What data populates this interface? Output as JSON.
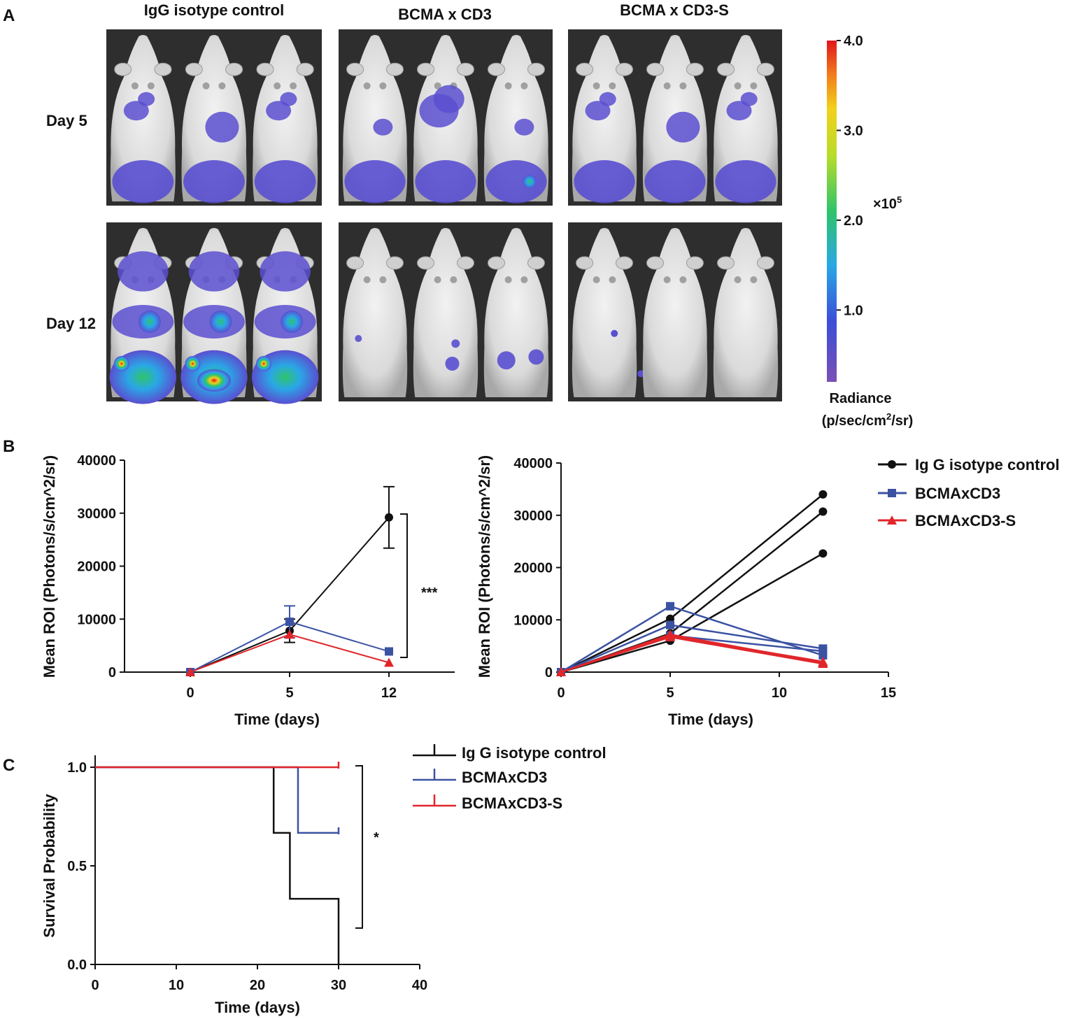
{
  "panel_a": {
    "letter": "A",
    "columns": [
      "IgG isotype control",
      "BCMA x CD3",
      "BCMA x CD3-S"
    ],
    "rows": [
      "Day 5",
      "Day 12"
    ],
    "colorbar": {
      "ticks": [
        "4.0",
        "3.0",
        "2.0",
        "1.0"
      ],
      "tick_values": [
        4.0,
        3.0,
        2.0,
        1.0
      ],
      "range": [
        0.2,
        4.0
      ],
      "multiplier_base": "×10",
      "multiplier_exp": "5",
      "label_line1": "Radiance",
      "label_line2_pre": "(p/sec/cm",
      "label_line2_sup": "2",
      "label_line2_post": "/sr)"
    }
  },
  "panel_b": {
    "letter": "B"
  },
  "panel_c": {
    "letter": "C"
  },
  "chart_data": [
    {
      "id": "b-left",
      "type": "line",
      "xlabel": "Time (days)",
      "ylabel": "Mean ROI (Photons/s/cm^2/sr)",
      "x_categories": [
        "0",
        "5",
        "12"
      ],
      "y_ticks": [
        "0",
        "10000",
        "20000",
        "30000",
        "40000"
      ],
      "ylim": [
        0,
        40000
      ],
      "series": [
        {
          "name": "Ig G isotype control",
          "color": "#111111",
          "marker": "circle",
          "values": [
            0,
            7800,
            29200
          ],
          "err": [
            0,
            2200,
            5800
          ]
        },
        {
          "name": "BCMAxCD3",
          "color": "#3b52a3",
          "marker": "square",
          "values": [
            0,
            9500,
            3900
          ],
          "err": [
            0,
            3000,
            0
          ]
        },
        {
          "name": "BCMAxCD3-S",
          "color": "#e0262b",
          "marker": "triangle",
          "values": [
            0,
            7100,
            1800
          ],
          "err": [
            0,
            0,
            0
          ]
        }
      ],
      "annotation": "***"
    },
    {
      "id": "b-right",
      "type": "line",
      "xlabel": "Time (days)",
      "ylabel": "Mean ROI (Photons/s/cm^2/sr)",
      "x_ticks": [
        "0",
        "5",
        "10",
        "15"
      ],
      "xlim": [
        0,
        15
      ],
      "y_ticks": [
        "0",
        "10000",
        "20000",
        "30000",
        "40000"
      ],
      "ylim": [
        0,
        40000
      ],
      "legend": [
        "Ig G isotype control",
        "BCMAxCD3",
        "BCMAxCD3-S"
      ],
      "series": [
        {
          "name": "Ig G isotype control",
          "color": "#111111",
          "marker": "circle",
          "x": [
            0,
            5,
            12
          ],
          "lines": [
            [
              0,
              10200,
              34000
            ],
            [
              0,
              7400,
              30700
            ],
            [
              0,
              6000,
              22700
            ]
          ]
        },
        {
          "name": "BCMAxCD3",
          "color": "#3b52a3",
          "marker": "square",
          "x": [
            0,
            5,
            12
          ],
          "lines": [
            [
              0,
              12600,
              3200
            ],
            [
              0,
              9000,
              4500
            ],
            [
              0,
              7000,
              4000
            ]
          ]
        },
        {
          "name": "BCMAxCD3-S",
          "color": "#e0262b",
          "marker": "triangle",
          "x": [
            0,
            5,
            12
          ],
          "lines": [
            [
              0,
              7200,
              1800
            ],
            [
              0,
              6900,
              2000
            ],
            [
              0,
              6700,
              1600
            ]
          ]
        }
      ]
    },
    {
      "id": "c-survival",
      "type": "line",
      "subtype": "kaplan-meier",
      "xlabel": "Time (days)",
      "ylabel": "Survival Probability",
      "x_ticks": [
        "0",
        "10",
        "20",
        "30",
        "40"
      ],
      "xlim": [
        0,
        40
      ],
      "y_ticks": [
        "0.0",
        "0.5",
        "1.0"
      ],
      "ylim": [
        0,
        1.05
      ],
      "legend": [
        "Ig G isotype control",
        "BCMAxCD3",
        "BCMAxCD3-S"
      ],
      "series": [
        {
          "name": "Ig G isotype control",
          "color": "#111111",
          "steps": [
            [
              0,
              1.0
            ],
            [
              22,
              0.667
            ],
            [
              24,
              0.333
            ],
            [
              30,
              0.0
            ]
          ],
          "end": 30
        },
        {
          "name": "BCMAxCD3",
          "color": "#3b52a3",
          "steps": [
            [
              0,
              1.0
            ],
            [
              25,
              0.667
            ]
          ],
          "end": 30,
          "censored": [
            30
          ]
        },
        {
          "name": "BCMAxCD3-S",
          "color": "#e0262b",
          "steps": [
            [
              0,
              1.0
            ]
          ],
          "end": 30,
          "censored": [
            30
          ]
        }
      ],
      "annotation": "*"
    }
  ]
}
